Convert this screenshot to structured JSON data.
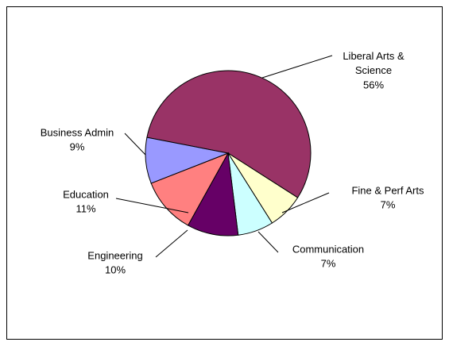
{
  "chart_data": {
    "type": "pie",
    "categories": [
      "Liberal Arts & Science",
      "Fine & Perf Arts",
      "Communication",
      "Engineering",
      "Education",
      "Business Admin"
    ],
    "values": [
      56,
      7,
      7,
      10,
      11,
      9
    ],
    "value_labels": [
      "56%",
      "7%",
      "7%",
      "10%",
      "11%",
      "9%"
    ],
    "colors": [
      "#993366",
      "#FFFFCC",
      "#CCFFFF",
      "#660066",
      "#FF8080",
      "#9999FF"
    ]
  }
}
